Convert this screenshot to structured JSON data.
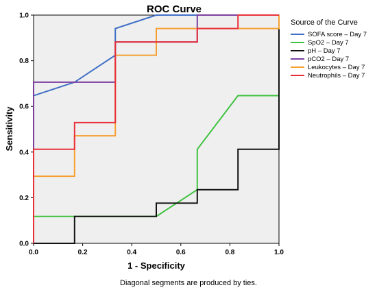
{
  "chart_data": {
    "type": "line",
    "title": "ROC Curve",
    "xlabel": "1 - Specificity",
    "ylabel": "Sensitivity",
    "xlim": [
      0,
      1
    ],
    "ylim": [
      0,
      1
    ],
    "xticks": [
      "0.0",
      "0.2",
      "0.4",
      "0.6",
      "0.8",
      "1.0"
    ],
    "yticks": [
      "0.0",
      "0.2",
      "0.4",
      "0.6",
      "0.8",
      "1.0"
    ],
    "grid": false,
    "plot_background": "#efefef",
    "legend": {
      "title": "Source of the Curve",
      "placement": "right"
    },
    "footnote": "Diagonal segments are produced by ties.",
    "series": [
      {
        "name": "SOFA score – Day 7",
        "color": "#3f6fc6",
        "points": [
          [
            0,
            0
          ],
          [
            0,
            0.647
          ],
          [
            0.167,
            0.706
          ],
          [
            0.333,
            0.824
          ],
          [
            0.333,
            0.941
          ],
          [
            0.5,
            1.0
          ],
          [
            1.0,
            1.0
          ]
        ]
      },
      {
        "name": "SpO2 – Day 7",
        "color": "#3ec23e",
        "points": [
          [
            0,
            0
          ],
          [
            0,
            0.118
          ],
          [
            0.167,
            0.118
          ],
          [
            0.5,
            0.118
          ],
          [
            0.667,
            0.235
          ],
          [
            0.667,
            0.412
          ],
          [
            0.833,
            0.647
          ],
          [
            1.0,
            0.647
          ]
        ]
      },
      {
        "name": "pH – Day 7",
        "color": "#111111",
        "points": [
          [
            0,
            0
          ],
          [
            0.167,
            0
          ],
          [
            0.167,
            0.118
          ],
          [
            0.5,
            0.118
          ],
          [
            0.5,
            0.176
          ],
          [
            0.667,
            0.176
          ],
          [
            0.667,
            0.235
          ],
          [
            0.833,
            0.235
          ],
          [
            0.833,
            0.412
          ],
          [
            1.0,
            0.412
          ],
          [
            1.0,
            1.0
          ]
        ]
      },
      {
        "name": "pCO2 – Day 7",
        "color": "#7b3fa0",
        "points": [
          [
            0,
            0
          ],
          [
            0,
            0.706
          ],
          [
            0.333,
            0.706
          ],
          [
            0.333,
            0.882
          ],
          [
            0.667,
            0.882
          ],
          [
            0.667,
            1.0
          ],
          [
            1.0,
            1.0
          ]
        ]
      },
      {
        "name": "Leukocytes – Day 7",
        "color": "#f5a030",
        "points": [
          [
            0,
            0
          ],
          [
            0,
            0.294
          ],
          [
            0.167,
            0.294
          ],
          [
            0.167,
            0.471
          ],
          [
            0.333,
            0.471
          ],
          [
            0.333,
            0.824
          ],
          [
            0.5,
            0.824
          ],
          [
            0.5,
            0.941
          ],
          [
            1.0,
            0.941
          ],
          [
            1.0,
            1.0
          ]
        ]
      },
      {
        "name": "Neutrophils – Day 7",
        "color": "#e8303a",
        "points": [
          [
            0,
            0
          ],
          [
            0,
            0.412
          ],
          [
            0.167,
            0.412
          ],
          [
            0.167,
            0.529
          ],
          [
            0.333,
            0.529
          ],
          [
            0.333,
            0.882
          ],
          [
            0.667,
            0.882
          ],
          [
            0.667,
            0.941
          ],
          [
            0.833,
            0.941
          ],
          [
            0.833,
            1.0
          ],
          [
            1.0,
            1.0
          ]
        ]
      }
    ]
  }
}
